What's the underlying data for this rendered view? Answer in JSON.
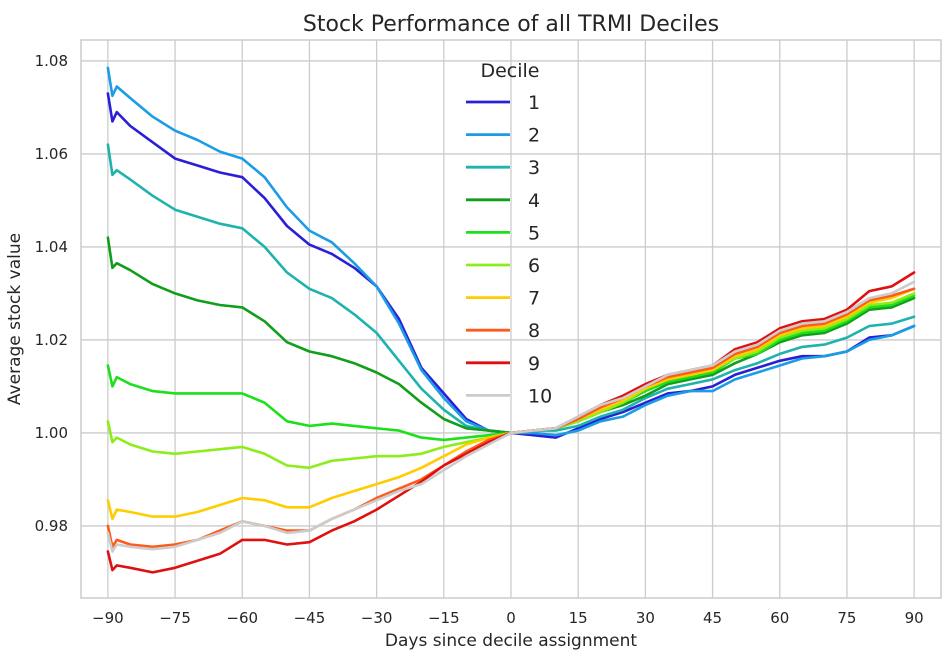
{
  "chart_data": {
    "type": "line",
    "title": "Stock Performance of all TRMI Deciles",
    "xlabel": "Days since decile assignment",
    "ylabel": "Average stock value",
    "xlim": [
      -96,
      96
    ],
    "ylim": [
      0.9645,
      1.0845
    ],
    "xticks": [
      -90,
      -75,
      -60,
      -45,
      -30,
      -15,
      0,
      15,
      30,
      45,
      60,
      75,
      90
    ],
    "yticks": [
      0.98,
      1.0,
      1.02,
      1.04,
      1.06,
      1.08
    ],
    "xtick_labels": [
      "−90",
      "−75",
      "−60",
      "−45",
      "−30",
      "−15",
      "0",
      "15",
      "30",
      "45",
      "60",
      "75",
      "90"
    ],
    "ytick_labels": [
      "0.98",
      "1.00",
      "1.02",
      "1.04",
      "1.06",
      "1.08"
    ],
    "grid": true,
    "legend": {
      "title": "Decile",
      "placement": "top-center"
    },
    "x": [
      -90,
      -89,
      -88,
      -85,
      -80,
      -75,
      -70,
      -65,
      -60,
      -55,
      -50,
      -45,
      -40,
      -35,
      -30,
      -25,
      -20,
      -15,
      -10,
      -5,
      0,
      5,
      10,
      15,
      20,
      25,
      30,
      35,
      40,
      45,
      50,
      55,
      60,
      65,
      70,
      75,
      80,
      85,
      90
    ],
    "series": [
      {
        "name": "1",
        "color": "#2a1fd6",
        "values": [
          1.073,
          1.067,
          1.069,
          1.066,
          1.0625,
          1.059,
          1.0575,
          1.056,
          1.055,
          1.0505,
          1.0445,
          1.0405,
          1.0385,
          1.0355,
          1.0315,
          1.0245,
          1.014,
          1.0085,
          1.003,
          1.0005,
          1.0,
          0.9995,
          0.999,
          1.001,
          1.003,
          1.0045,
          1.0065,
          1.0085,
          1.009,
          1.01,
          1.0125,
          1.014,
          1.0155,
          1.0165,
          1.0165,
          1.0175,
          1.0205,
          1.021,
          1.023
        ]
      },
      {
        "name": "2",
        "color": "#1a9ce6",
        "values": [
          1.0785,
          1.0725,
          1.0745,
          1.072,
          1.068,
          1.065,
          1.063,
          1.0605,
          1.059,
          1.055,
          1.0485,
          1.0435,
          1.041,
          1.0365,
          1.0315,
          1.0235,
          1.0135,
          1.0075,
          1.0025,
          1.0005,
          1.0,
          1.0,
          0.9995,
          1.0005,
          1.0025,
          1.0035,
          1.006,
          1.008,
          1.009,
          1.009,
          1.0115,
          1.013,
          1.0145,
          1.016,
          1.0165,
          1.0175,
          1.02,
          1.021,
          1.023
        ]
      },
      {
        "name": "3",
        "color": "#1fb3ad",
        "values": [
          1.062,
          1.0555,
          1.0565,
          1.0545,
          1.051,
          1.048,
          1.0465,
          1.045,
          1.044,
          1.04,
          1.0345,
          1.031,
          1.029,
          1.0255,
          1.0215,
          1.0155,
          1.0095,
          1.005,
          1.0015,
          1.0005,
          1.0,
          1.0005,
          1.0005,
          1.0015,
          1.0035,
          1.005,
          1.0075,
          1.0095,
          1.0105,
          1.0115,
          1.0135,
          1.015,
          1.017,
          1.0185,
          1.019,
          1.0205,
          1.023,
          1.0235,
          1.025
        ]
      },
      {
        "name": "4",
        "color": "#119e1a",
        "values": [
          1.042,
          1.0355,
          1.0365,
          1.035,
          1.032,
          1.03,
          1.0285,
          1.0275,
          1.027,
          1.024,
          1.0195,
          1.0175,
          1.0165,
          1.015,
          1.013,
          1.0105,
          1.0065,
          1.003,
          1.001,
          1.0005,
          1.0,
          1.0005,
          1.001,
          1.0025,
          1.0045,
          1.006,
          1.008,
          1.0105,
          1.0115,
          1.0125,
          1.015,
          1.017,
          1.0195,
          1.021,
          1.0215,
          1.0235,
          1.0265,
          1.027,
          1.029
        ]
      },
      {
        "name": "5",
        "color": "#1de01d",
        "values": [
          1.0145,
          1.01,
          1.012,
          1.0105,
          1.009,
          1.0085,
          1.0085,
          1.0085,
          1.0085,
          1.0065,
          1.0025,
          1.0015,
          1.002,
          1.0015,
          1.001,
          1.0005,
          0.999,
          0.9985,
          0.999,
          0.9995,
          1.0,
          1.0005,
          1.001,
          1.0025,
          1.0045,
          1.0065,
          1.009,
          1.011,
          1.012,
          1.013,
          1.016,
          1.017,
          1.02,
          1.0215,
          1.022,
          1.024,
          1.027,
          1.0275,
          1.0295
        ]
      },
      {
        "name": "6",
        "color": "#8ded1a",
        "values": [
          1.0025,
          0.998,
          0.999,
          0.9975,
          0.996,
          0.9955,
          0.996,
          0.9965,
          0.997,
          0.9955,
          0.993,
          0.9925,
          0.994,
          0.9945,
          0.995,
          0.995,
          0.9955,
          0.997,
          0.998,
          0.999,
          1.0,
          1.0005,
          1.001,
          1.0025,
          1.0045,
          1.0065,
          1.0095,
          1.0115,
          1.0125,
          1.0135,
          1.016,
          1.0175,
          1.0205,
          1.022,
          1.0225,
          1.0245,
          1.0275,
          1.028,
          1.03
        ]
      },
      {
        "name": "7",
        "color": "#ffcc00",
        "values": [
          0.9855,
          0.9815,
          0.9835,
          0.983,
          0.982,
          0.982,
          0.983,
          0.9845,
          0.986,
          0.9855,
          0.984,
          0.984,
          0.986,
          0.9875,
          0.989,
          0.9905,
          0.9925,
          0.995,
          0.9975,
          0.999,
          1.0,
          1.0005,
          1.001,
          1.003,
          1.005,
          1.007,
          1.0095,
          1.0115,
          1.0125,
          1.0135,
          1.0165,
          1.018,
          1.021,
          1.0225,
          1.023,
          1.025,
          1.028,
          1.029,
          1.031
        ]
      },
      {
        "name": "8",
        "color": "#ff5a1a",
        "values": [
          0.98,
          0.9755,
          0.977,
          0.976,
          0.9755,
          0.976,
          0.977,
          0.979,
          0.981,
          0.98,
          0.979,
          0.979,
          0.9815,
          0.9835,
          0.986,
          0.988,
          0.99,
          0.993,
          0.996,
          0.9985,
          1.0,
          1.0005,
          1.001,
          1.003,
          1.0055,
          1.0075,
          1.01,
          1.012,
          1.013,
          1.014,
          1.017,
          1.0185,
          1.0215,
          1.023,
          1.0235,
          1.0255,
          1.0285,
          1.0295,
          1.031
        ]
      },
      {
        "name": "9",
        "color": "#e01010",
        "values": [
          0.9745,
          0.9705,
          0.9715,
          0.971,
          0.97,
          0.971,
          0.9725,
          0.974,
          0.977,
          0.977,
          0.976,
          0.9765,
          0.979,
          0.981,
          0.9835,
          0.9865,
          0.9895,
          0.993,
          0.9955,
          0.998,
          1.0,
          1.0005,
          1.001,
          1.0035,
          1.006,
          1.008,
          1.0105,
          1.0125,
          1.0135,
          1.0145,
          1.018,
          1.0195,
          1.0225,
          1.024,
          1.0245,
          1.0265,
          1.0305,
          1.0315,
          1.0345
        ]
      },
      {
        "name": "10",
        "color": "#cccccc",
        "values": [
          0.9785,
          0.9745,
          0.976,
          0.9755,
          0.975,
          0.9755,
          0.977,
          0.9785,
          0.981,
          0.98,
          0.9785,
          0.979,
          0.9815,
          0.9835,
          0.9855,
          0.9875,
          0.989,
          0.992,
          0.995,
          0.9975,
          1.0,
          1.0005,
          1.001,
          1.0035,
          1.006,
          1.0075,
          1.01,
          1.0125,
          1.0135,
          1.0145,
          1.0175,
          1.019,
          1.022,
          1.0235,
          1.024,
          1.026,
          1.029,
          1.03,
          1.0325
        ]
      }
    ]
  }
}
